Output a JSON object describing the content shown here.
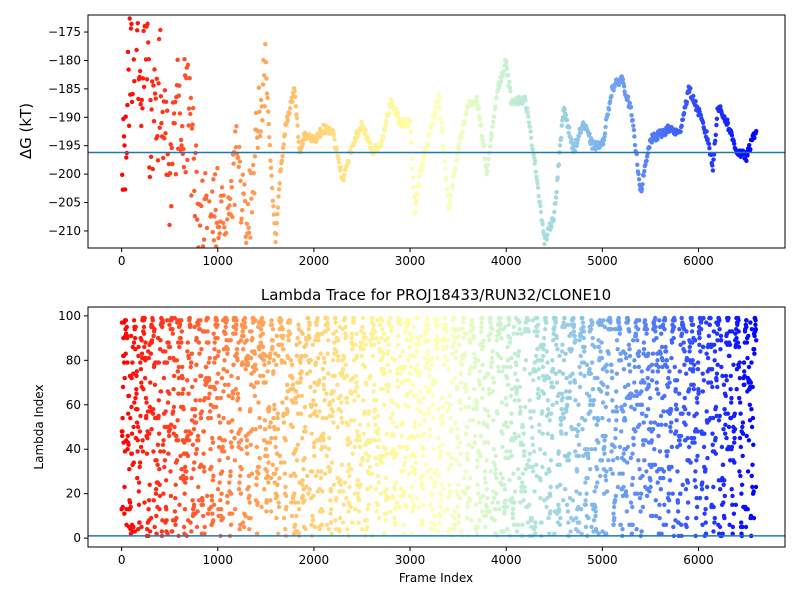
{
  "chart_data": [
    {
      "type": "scatter",
      "title": "",
      "xlabel": "",
      "ylabel": "ΔG (kT)",
      "xlim": [
        -350,
        6900
      ],
      "ylim": [
        -213,
        -172
      ],
      "xticks": [
        0,
        1000,
        2000,
        3000,
        4000,
        5000,
        6000
      ],
      "yticks": [
        -175,
        -180,
        -185,
        -190,
        -195,
        -200,
        -205,
        -210
      ],
      "x_tick_labels": [
        "0",
        "1000",
        "2000",
        "3000",
        "4000",
        "5000",
        "6000"
      ],
      "y_tick_labels": [
        "−175",
        "−180",
        "−185",
        "−190",
        "−195",
        "−200",
        "−205",
        "−210"
      ],
      "colormap": "rainbow (red at frame 0 → violet at end)",
      "x_range": [
        0,
        6600
      ],
      "reference_line": {
        "y": -196.2,
        "color": "#1f77b4"
      },
      "trace_keypoints": {
        "x": [
          0,
          50,
          100,
          150,
          200,
          250,
          300,
          400,
          500,
          600,
          700,
          800,
          900,
          1000,
          1100,
          1200,
          1300,
          1400,
          1450,
          1500,
          1550,
          1600,
          1650,
          1700,
          1800,
          1850,
          1900,
          2000,
          2100,
          2200,
          2300,
          2400,
          2500,
          2600,
          2700,
          2800,
          2900,
          3000,
          3050,
          3100,
          3200,
          3300,
          3400,
          3500,
          3600,
          3700,
          3800,
          3900,
          4000,
          4050,
          4100,
          4200,
          4300,
          4400,
          4500,
          4600,
          4700,
          4800,
          4900,
          5000,
          5100,
          5200,
          5300,
          5400,
          5500,
          5600,
          5700,
          5800,
          5900,
          6000,
          6100,
          6150,
          6200,
          6300,
          6400,
          6500,
          6600
        ],
        "y": [
          -205,
          -190,
          -178,
          -172,
          -190,
          -175,
          -195,
          -185,
          -200,
          -185,
          -192,
          -205,
          -211,
          -205,
          -209,
          -196,
          -212,
          -193,
          -188,
          -181,
          -198,
          -212,
          -200,
          -192,
          -185,
          -196,
          -193,
          -194,
          -192,
          -193,
          -201,
          -195,
          -191,
          -196,
          -195,
          -187,
          -191,
          -191,
          -207,
          -200,
          -193,
          -186,
          -206,
          -196,
          -188,
          -187,
          -200,
          -186,
          -180,
          -187,
          -187,
          -187,
          -198,
          -212,
          -207,
          -188,
          -196,
          -191,
          -195,
          -195,
          -185,
          -183,
          -189,
          -203,
          -194,
          -193,
          -192,
          -193,
          -185,
          -189,
          -194,
          -199,
          -188,
          -191,
          -196,
          -197,
          -192
        ]
      }
    },
    {
      "type": "scatter",
      "title": "Lambda Trace for PROJ18433/RUN32/CLONE10",
      "xlabel": "Frame Index",
      "ylabel": "Lambda Index",
      "xlim": [
        -350,
        6900
      ],
      "ylim": [
        -4,
        104
      ],
      "xticks": [
        0,
        1000,
        2000,
        3000,
        4000,
        5000,
        6000
      ],
      "yticks": [
        0,
        20,
        40,
        60,
        80,
        100
      ],
      "x_tick_labels": [
        "0",
        "1000",
        "2000",
        "3000",
        "4000",
        "5000",
        "6000"
      ],
      "y_tick_labels": [
        "0",
        "20",
        "40",
        "60",
        "80",
        "100"
      ],
      "colormap": "rainbow (red at frame 0 → violet at end)",
      "x_range": [
        0,
        6600
      ],
      "y_range": [
        0,
        99
      ],
      "reference_line": {
        "y": 1,
        "color": "#1f77b4"
      }
    }
  ]
}
